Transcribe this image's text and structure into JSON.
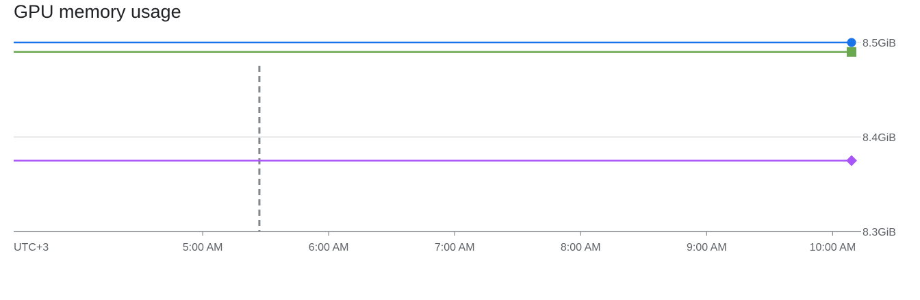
{
  "title": "GPU memory usage",
  "chart_data": {
    "type": "line",
    "title": "GPU memory usage",
    "timezone_label": "UTC+3",
    "x_ticks": [
      "5:00 AM",
      "6:00 AM",
      "7:00 AM",
      "8:00 AM",
      "9:00 AM",
      "10:00 AM"
    ],
    "x_tick_hours": [
      5,
      6,
      7,
      8,
      9,
      10
    ],
    "x_range_hours": [
      3.5,
      10.15
    ],
    "y_unit": "GiB",
    "y_ticks": [
      "8.3GiB",
      "8.4GiB",
      "8.5GiB"
    ],
    "y_tick_values": [
      8.3,
      8.4,
      8.5
    ],
    "y_range": [
      8.3,
      8.5
    ],
    "grid": true,
    "legend": "none",
    "marker_line_hour": 5.45,
    "series": [
      {
        "color": "#1a73e8",
        "marker": "circle",
        "x": [
          3.5,
          10.15
        ],
        "y": [
          8.5,
          8.5
        ]
      },
      {
        "color": "#6aa84f",
        "marker": "square",
        "x": [
          3.5,
          10.15
        ],
        "y": [
          8.49,
          8.49
        ]
      },
      {
        "color": "#a855f7",
        "marker": "diamond",
        "x": [
          3.5,
          10.15
        ],
        "y": [
          8.375,
          8.375
        ]
      }
    ]
  }
}
